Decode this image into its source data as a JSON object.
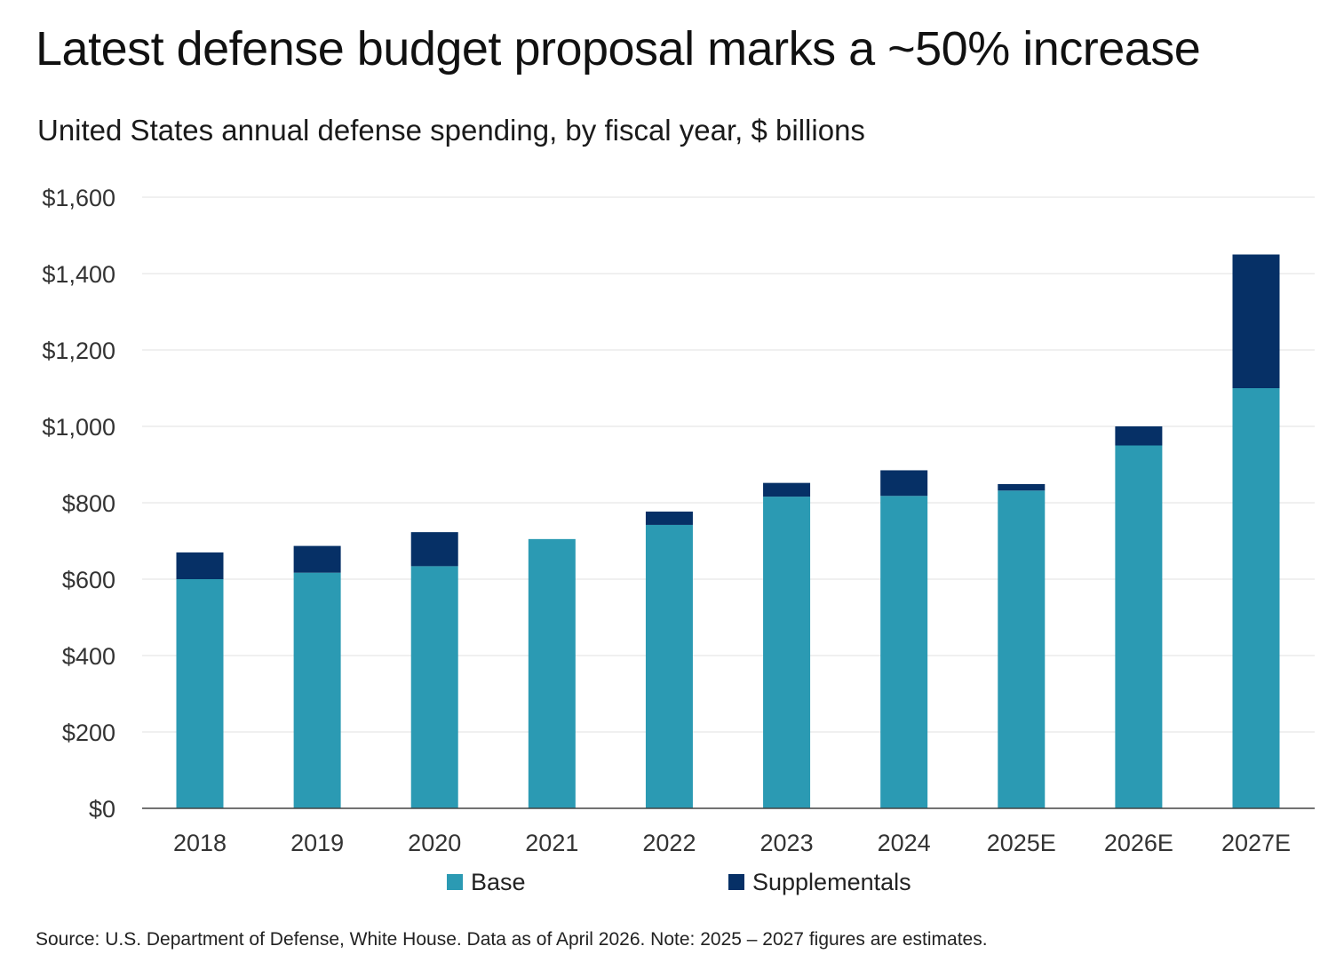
{
  "title": "Latest defense budget proposal marks a ~50% increase",
  "subtitle": "United States annual defense spending, by fiscal year, $ billions",
  "source": "Source: U.S. Department of Defense, White House. Data as of April 2026. Note: 2025 – 2027 figures are estimates.",
  "colors": {
    "base": "#2b9ab3",
    "supplementals": "#063066",
    "grid": "#e2e2e2",
    "axis": "#444444"
  },
  "chart_data": {
    "type": "bar",
    "stacked": true,
    "categories": [
      "2018",
      "2019",
      "2020",
      "2021",
      "2022",
      "2023",
      "2024",
      "2025E",
      "2026E",
      "2027E"
    ],
    "series": [
      {
        "name": "Base",
        "values": [
          600,
          617,
          634,
          705,
          742,
          816,
          818,
          832,
          950,
          1100
        ]
      },
      {
        "name": "Supplementals",
        "values": [
          70,
          70,
          89,
          0,
          35,
          36,
          67,
          17,
          50,
          350
        ]
      }
    ],
    "ylim": [
      0,
      1600
    ],
    "yticks": [
      0,
      200,
      400,
      600,
      800,
      1000,
      1200,
      1400,
      1600
    ],
    "ytick_labels": [
      "$0",
      "$200",
      "$400",
      "$600",
      "$800",
      "$1,000",
      "$1,200",
      "$1,400",
      "$1,600"
    ],
    "grid": true,
    "legend_position": "bottom"
  }
}
